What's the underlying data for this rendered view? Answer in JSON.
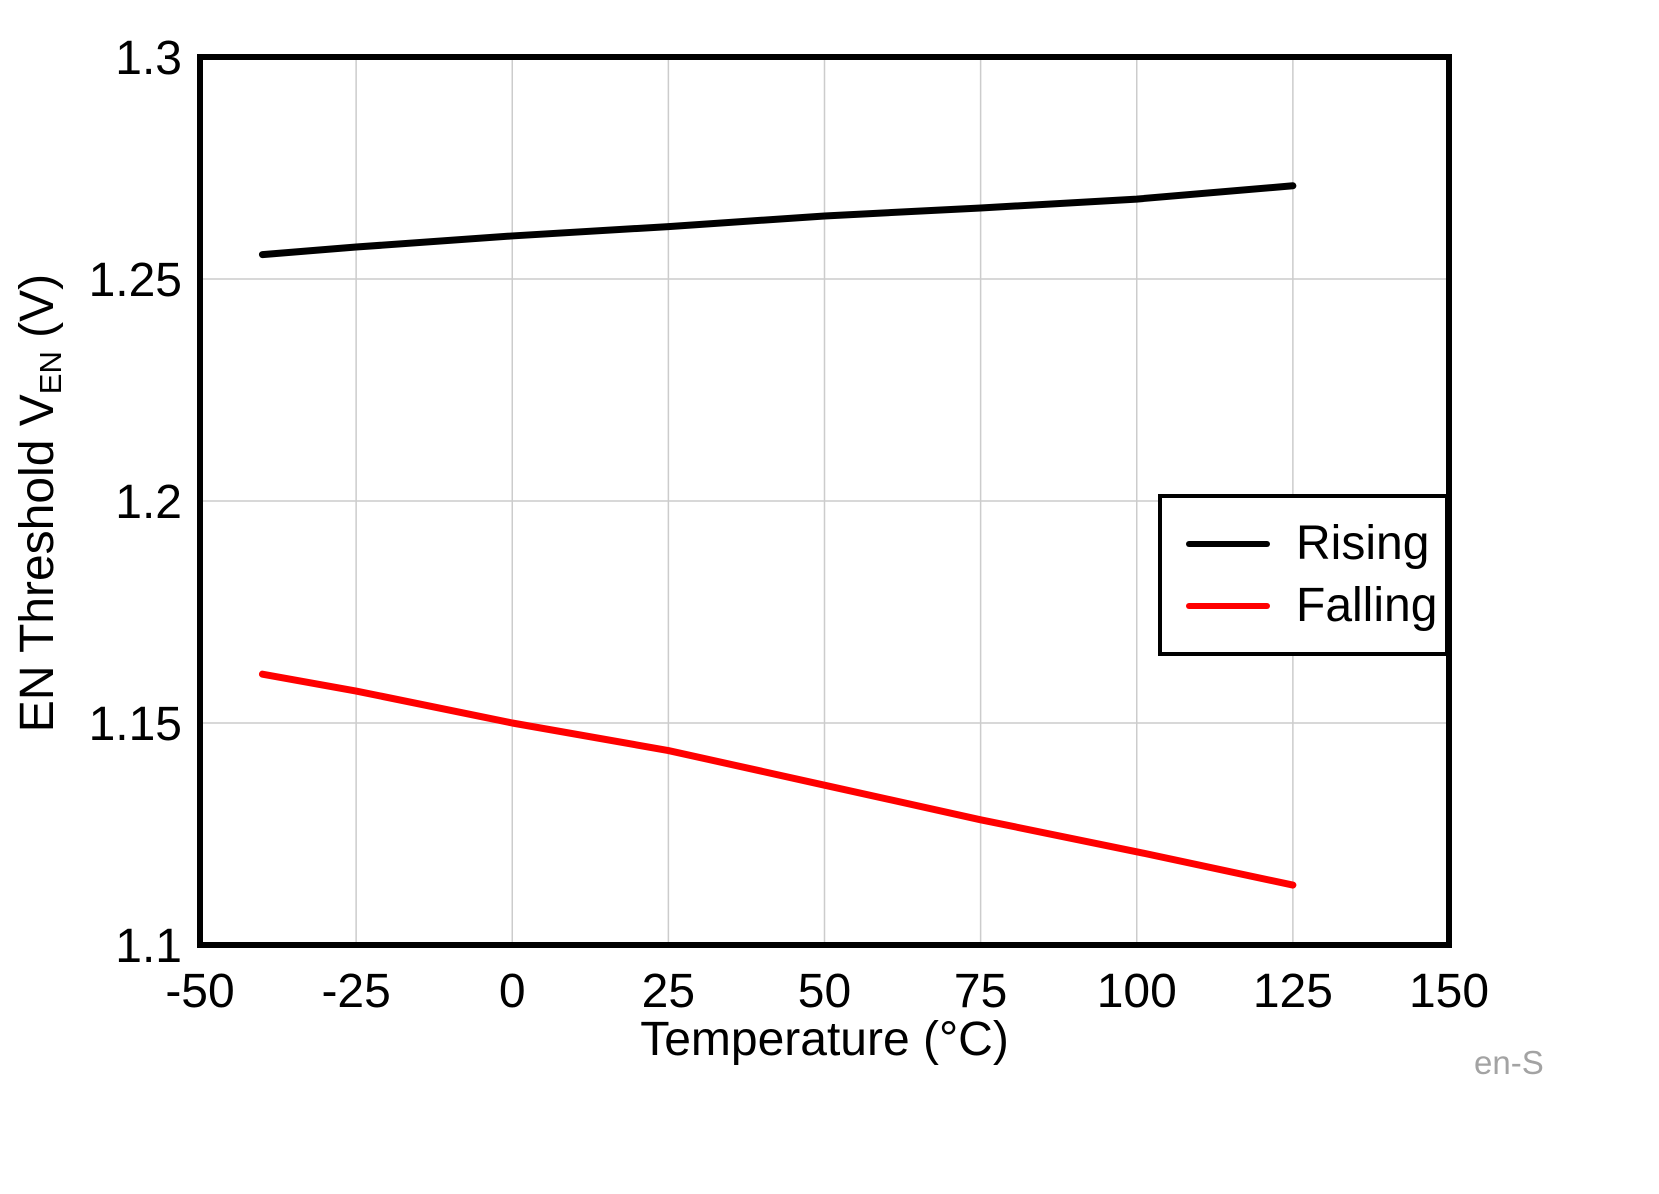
{
  "chart_data": {
    "type": "line",
    "title": "",
    "xlabel": "Temperature (°C)",
    "ylabel_parts": {
      "pre": "EN Threshold V",
      "sub": "EN",
      "post": " (V)"
    },
    "xlim": [
      -50,
      150
    ],
    "ylim": [
      1.1,
      1.3
    ],
    "x_ticks": [
      -50,
      -25,
      0,
      25,
      50,
      75,
      100,
      125,
      150
    ],
    "x_tick_labels": [
      "-50",
      "-25",
      "0",
      "25",
      "50",
      "75",
      "100",
      "125",
      "150"
    ],
    "y_ticks": [
      1.1,
      1.15,
      1.2,
      1.25,
      1.3
    ],
    "y_tick_labels": [
      "1.1",
      "1.15",
      "1.2",
      "1.25",
      "1.3"
    ],
    "grid": true,
    "legend_position": "middle-right",
    "watermark": "en-S",
    "colors": {
      "grid": "#cccccc",
      "frame": "#000000",
      "text": "#000000",
      "watermark": "#a3a3a3"
    },
    "series": [
      {
        "name": "Rising",
        "color": "#000000",
        "x": [
          -40,
          -25,
          0,
          25,
          50,
          75,
          100,
          125
        ],
        "values": [
          1.2555,
          1.2572,
          1.2597,
          1.2618,
          1.2642,
          1.266,
          1.268,
          1.271
        ]
      },
      {
        "name": "Falling",
        "color": "#ff0000",
        "x": [
          -40,
          -25,
          0,
          25,
          50,
          75,
          100,
          125
        ],
        "values": [
          1.161,
          1.1572,
          1.15,
          1.1438,
          1.136,
          1.1282,
          1.121,
          1.1135
        ]
      }
    ]
  }
}
